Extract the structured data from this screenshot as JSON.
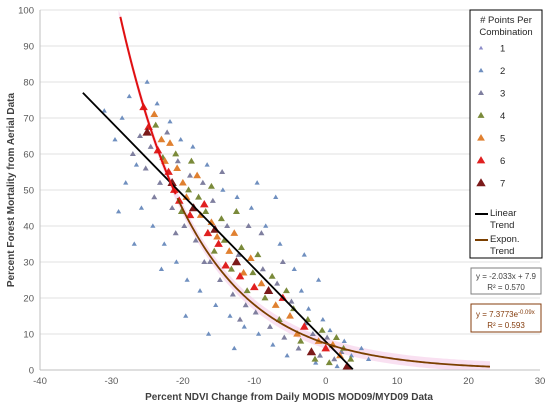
{
  "chart_data": {
    "type": "scatter",
    "title": "",
    "xlabel": "Percent NDVI Change from Daily MODIS MOD09/MYD09 Data",
    "ylabel": "Percent Forest Mortality from Aerial Data",
    "xlim": [
      -40,
      30
    ],
    "ylim": [
      0,
      100
    ],
    "x_ticks": [
      "-40",
      "-30",
      "-20",
      "-10",
      "0",
      "10",
      "20",
      "30"
    ],
    "y_ticks": [
      "0",
      "10",
      "20",
      "30",
      "40",
      "50",
      "60",
      "70",
      "80",
      "90",
      "100"
    ],
    "grid": "horizontal",
    "legend": {
      "placement": "right",
      "title": [
        "# Points Per",
        "Combination"
      ],
      "entries": [
        {
          "label": "1",
          "color": "#8c8cc8",
          "size": 2.2
        },
        {
          "label": "2",
          "color": "#6f8fbf",
          "size": 2.6
        },
        {
          "label": "3",
          "color": "#7f7f9f",
          "size": 3.0
        },
        {
          "label": "4",
          "color": "#7a8a3a",
          "size": 3.5
        },
        {
          "label": "5",
          "color": "#e08030",
          "size": 3.9
        },
        {
          "label": "6",
          "color": "#e02020",
          "size": 4.3
        },
        {
          "label": "7",
          "color": "#7b1a1a",
          "size": 4.7
        }
      ],
      "trend_entries": [
        {
          "label": [
            "Linear",
            "Trend"
          ],
          "color": "#000000"
        },
        {
          "label": [
            "Expon.",
            "Trend"
          ],
          "color": "#7b3f00"
        }
      ]
    },
    "series": [
      {
        "name": "7",
        "points": [
          [
            -25.0,
            66.0
          ],
          [
            -21.5,
            52.0
          ],
          [
            -18.5,
            45.0
          ],
          [
            -15.5,
            39.0
          ],
          [
            -12.5,
            30.0
          ],
          [
            -8.0,
            22.0
          ],
          [
            -2.0,
            5.0
          ],
          [
            3.0,
            1.0
          ]
        ]
      },
      {
        "name": "6",
        "points": [
          [
            -25.5,
            73.0
          ],
          [
            -24.8,
            67.5
          ],
          [
            -23.5,
            61.0
          ],
          [
            -22.0,
            55.0
          ],
          [
            -21.2,
            50.0
          ],
          [
            -20.5,
            47.0
          ],
          [
            -19.0,
            43.0
          ],
          [
            -17.0,
            46.0
          ],
          [
            -16.5,
            38.0
          ],
          [
            -15.0,
            35.0
          ],
          [
            -14.0,
            29.0
          ],
          [
            -12.0,
            26.0
          ],
          [
            -10.0,
            23.0
          ],
          [
            -6.0,
            20.0
          ],
          [
            -3.0,
            12.0
          ],
          [
            0.0,
            6.0
          ]
        ]
      },
      {
        "name": "5",
        "points": [
          [
            -24.0,
            71.0
          ],
          [
            -23.0,
            64.0
          ],
          [
            -22.5,
            58.0
          ],
          [
            -21.8,
            63.0
          ],
          [
            -20.8,
            56.0
          ],
          [
            -20.0,
            52.0
          ],
          [
            -19.5,
            48.0
          ],
          [
            -18.0,
            54.0
          ],
          [
            -17.5,
            43.0
          ],
          [
            -16.0,
            41.0
          ],
          [
            -15.2,
            37.0
          ],
          [
            -13.5,
            33.0
          ],
          [
            -12.8,
            38.0
          ],
          [
            -11.5,
            27.0
          ],
          [
            -10.5,
            31.0
          ],
          [
            -9.0,
            24.0
          ],
          [
            -7.0,
            18.0
          ],
          [
            -5.0,
            15.0
          ],
          [
            -4.0,
            10.0
          ],
          [
            -1.0,
            8.0
          ],
          [
            1.0,
            7.0
          ],
          [
            2.0,
            4.0
          ]
        ]
      },
      {
        "name": "4",
        "points": [
          [
            -23.8,
            68.0
          ],
          [
            -22.8,
            59.0
          ],
          [
            -21.0,
            60.0
          ],
          [
            -20.2,
            44.0
          ],
          [
            -19.2,
            50.0
          ],
          [
            -18.8,
            58.0
          ],
          [
            -17.8,
            48.0
          ],
          [
            -16.8,
            44.0
          ],
          [
            -16.0,
            51.0
          ],
          [
            -15.6,
            33.0
          ],
          [
            -14.6,
            42.0
          ],
          [
            -14.2,
            36.0
          ],
          [
            -13.2,
            28.0
          ],
          [
            -12.5,
            44.0
          ],
          [
            -11.8,
            34.0
          ],
          [
            -11.0,
            22.0
          ],
          [
            -10.2,
            27.0
          ],
          [
            -9.5,
            32.0
          ],
          [
            -8.5,
            20.0
          ],
          [
            -7.5,
            26.0
          ],
          [
            -6.5,
            14.0
          ],
          [
            -5.5,
            22.0
          ],
          [
            -4.5,
            17.0
          ],
          [
            -3.5,
            8.0
          ],
          [
            -2.5,
            14.0
          ],
          [
            -1.5,
            3.0
          ],
          [
            -0.5,
            11.0
          ],
          [
            0.5,
            2.0
          ],
          [
            1.5,
            9.0
          ],
          [
            2.5,
            6.0
          ],
          [
            3.5,
            3.0
          ]
        ]
      },
      {
        "name": "3",
        "points": [
          [
            -27.0,
            60.0
          ],
          [
            -26.0,
            65.0
          ],
          [
            -25.2,
            56.0
          ],
          [
            -24.5,
            62.0
          ],
          [
            -23.2,
            52.0
          ],
          [
            -22.2,
            66.0
          ],
          [
            -21.5,
            45.0
          ],
          [
            -20.7,
            58.0
          ],
          [
            -19.8,
            40.0
          ],
          [
            -19.0,
            54.0
          ],
          [
            -18.2,
            36.0
          ],
          [
            -17.2,
            52.0
          ],
          [
            -16.2,
            30.0
          ],
          [
            -15.8,
            47.0
          ],
          [
            -14.8,
            25.0
          ],
          [
            -13.8,
            40.0
          ],
          [
            -13.0,
            21.0
          ],
          [
            -12.2,
            32.0
          ],
          [
            -11.2,
            18.0
          ],
          [
            -10.8,
            40.0
          ],
          [
            -9.8,
            16.0
          ],
          [
            -8.8,
            28.0
          ],
          [
            -7.8,
            12.0
          ],
          [
            -6.8,
            24.0
          ],
          [
            -5.8,
            9.0
          ],
          [
            -4.8,
            19.0
          ],
          [
            -3.8,
            6.0
          ],
          [
            -2.8,
            13.0
          ],
          [
            -1.8,
            10.0
          ],
          [
            -0.8,
            4.0
          ],
          [
            0.2,
            9.0
          ],
          [
            1.2,
            3.0
          ],
          [
            2.2,
            5.0
          ],
          [
            -24.0,
            48.0
          ],
          [
            -21.0,
            38.0
          ],
          [
            -17.0,
            30.0
          ],
          [
            -14.5,
            55.0
          ],
          [
            -12.0,
            14.0
          ],
          [
            -9.0,
            38.0
          ],
          [
            -6.0,
            30.0
          ]
        ]
      },
      {
        "name": "2",
        "points": [
          [
            -31.0,
            72.0
          ],
          [
            -29.5,
            64.0
          ],
          [
            -28.5,
            70.0
          ],
          [
            -28.0,
            52.0
          ],
          [
            -27.5,
            76.0
          ],
          [
            -26.5,
            57.0
          ],
          [
            -25.8,
            45.0
          ],
          [
            -25.0,
            80.0
          ],
          [
            -24.2,
            40.0
          ],
          [
            -23.6,
            74.0
          ],
          [
            -22.6,
            35.0
          ],
          [
            -21.8,
            69.0
          ],
          [
            -20.9,
            30.0
          ],
          [
            -20.3,
            64.0
          ],
          [
            -19.4,
            25.0
          ],
          [
            -18.6,
            62.0
          ],
          [
            -17.6,
            22.0
          ],
          [
            -16.6,
            57.0
          ],
          [
            -15.4,
            18.0
          ],
          [
            -14.4,
            50.0
          ],
          [
            -13.4,
            15.0
          ],
          [
            -12.4,
            48.0
          ],
          [
            -11.4,
            12.0
          ],
          [
            -10.4,
            45.0
          ],
          [
            -9.4,
            10.0
          ],
          [
            -8.4,
            40.0
          ],
          [
            -7.4,
            7.0
          ],
          [
            -6.4,
            35.0
          ],
          [
            -5.4,
            4.0
          ],
          [
            -4.4,
            28.0
          ],
          [
            -3.4,
            22.0
          ],
          [
            -2.4,
            17.0
          ],
          [
            -1.4,
            2.0
          ],
          [
            -0.4,
            14.0
          ],
          [
            0.6,
            11.0
          ],
          [
            1.6,
            1.0
          ],
          [
            2.6,
            8.0
          ],
          [
            3.6,
            4.0
          ],
          [
            5.0,
            6.0
          ],
          [
            6.0,
            3.0
          ],
          [
            -29.0,
            44.0
          ],
          [
            -26.8,
            35.0
          ],
          [
            -23.0,
            28.0
          ],
          [
            -19.6,
            15.0
          ],
          [
            -16.4,
            10.0
          ],
          [
            -12.8,
            6.0
          ],
          [
            -9.6,
            52.0
          ],
          [
            -7.0,
            48.0
          ],
          [
            -3.0,
            32.0
          ],
          [
            -1.0,
            25.0
          ]
        ]
      }
    ],
    "trendlines": [
      {
        "name": "Linear Trend",
        "type": "linear",
        "equation": "y = -2.033x + 7.9",
        "r2": "R² = 0.570",
        "slope": -2.033,
        "intercept": 7.9,
        "x_range": [
          -34,
          3.8
        ]
      },
      {
        "name": "Expon. Trend",
        "type": "exponential",
        "equation_prefix": "y = 7.3773e",
        "equation_exponent": "-0.09x",
        "r2": "R² = 0.593",
        "a": 7.3773,
        "b": -0.09,
        "x_range": [
          -29.0,
          23.0
        ]
      }
    ],
    "annotations": [
      {
        "text": "y = -2.033x + 7.9"
      },
      {
        "text": "R² = 0.570"
      },
      {
        "text": "y = 7.3773e"
      },
      {
        "text": "-0.09x"
      },
      {
        "text": "R² = 0.593"
      }
    ]
  }
}
